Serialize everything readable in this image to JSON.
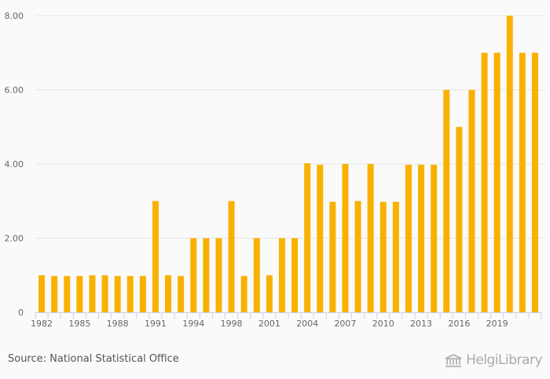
{
  "chart_data": {
    "type": "bar",
    "categories": [
      "1982",
      "1983",
      "1984",
      "1985",
      "1986",
      "1987",
      "1988",
      "1989",
      "1990",
      "1991",
      "1992",
      "1993",
      "1994",
      "1995",
      "1996",
      "1997",
      "1998",
      "1999",
      "2000",
      "2001",
      "2002",
      "2003",
      "2004",
      "2005",
      "2006",
      "2007",
      "2008",
      "2009",
      "2010",
      "2011",
      "2012",
      "2013",
      "2014",
      "2015",
      "2016",
      "2017",
      "2018",
      "2019",
      "2020",
      "2021"
    ],
    "values": [
      1.0,
      0.98,
      0.98,
      0.98,
      1.0,
      1.0,
      0.98,
      0.98,
      0.98,
      3.0,
      1.0,
      0.98,
      2.0,
      2.0,
      2.0,
      3.0,
      0.98,
      2.0,
      1.0,
      2.0,
      2.0,
      4.02,
      3.98,
      2.98,
      4.0,
      3.0,
      4.0,
      2.98,
      2.98,
      3.98,
      3.98,
      3.98,
      6.0,
      5.0,
      6.0,
      7.0,
      7.0,
      8.0,
      7.0,
      7.0
    ],
    "x_tick_labels": [
      "1982",
      "1985",
      "1988",
      "1991",
      "1994",
      "1998",
      "2001",
      "2004",
      "2007",
      "2010",
      "2013",
      "2016",
      "2019"
    ],
    "y_tick_labels": [
      "0",
      "2.00",
      "4.00",
      "6.00",
      "8.00"
    ],
    "y_ticks": [
      0,
      2,
      4,
      6,
      8
    ],
    "ylim": [
      0,
      8
    ],
    "title": "",
    "xlabel": "",
    "ylabel": "",
    "grid": true,
    "bar_color": "#F9B100"
  },
  "footer": {
    "source": "Source: National Statistical Office",
    "logo": "HelgiLibrary"
  }
}
